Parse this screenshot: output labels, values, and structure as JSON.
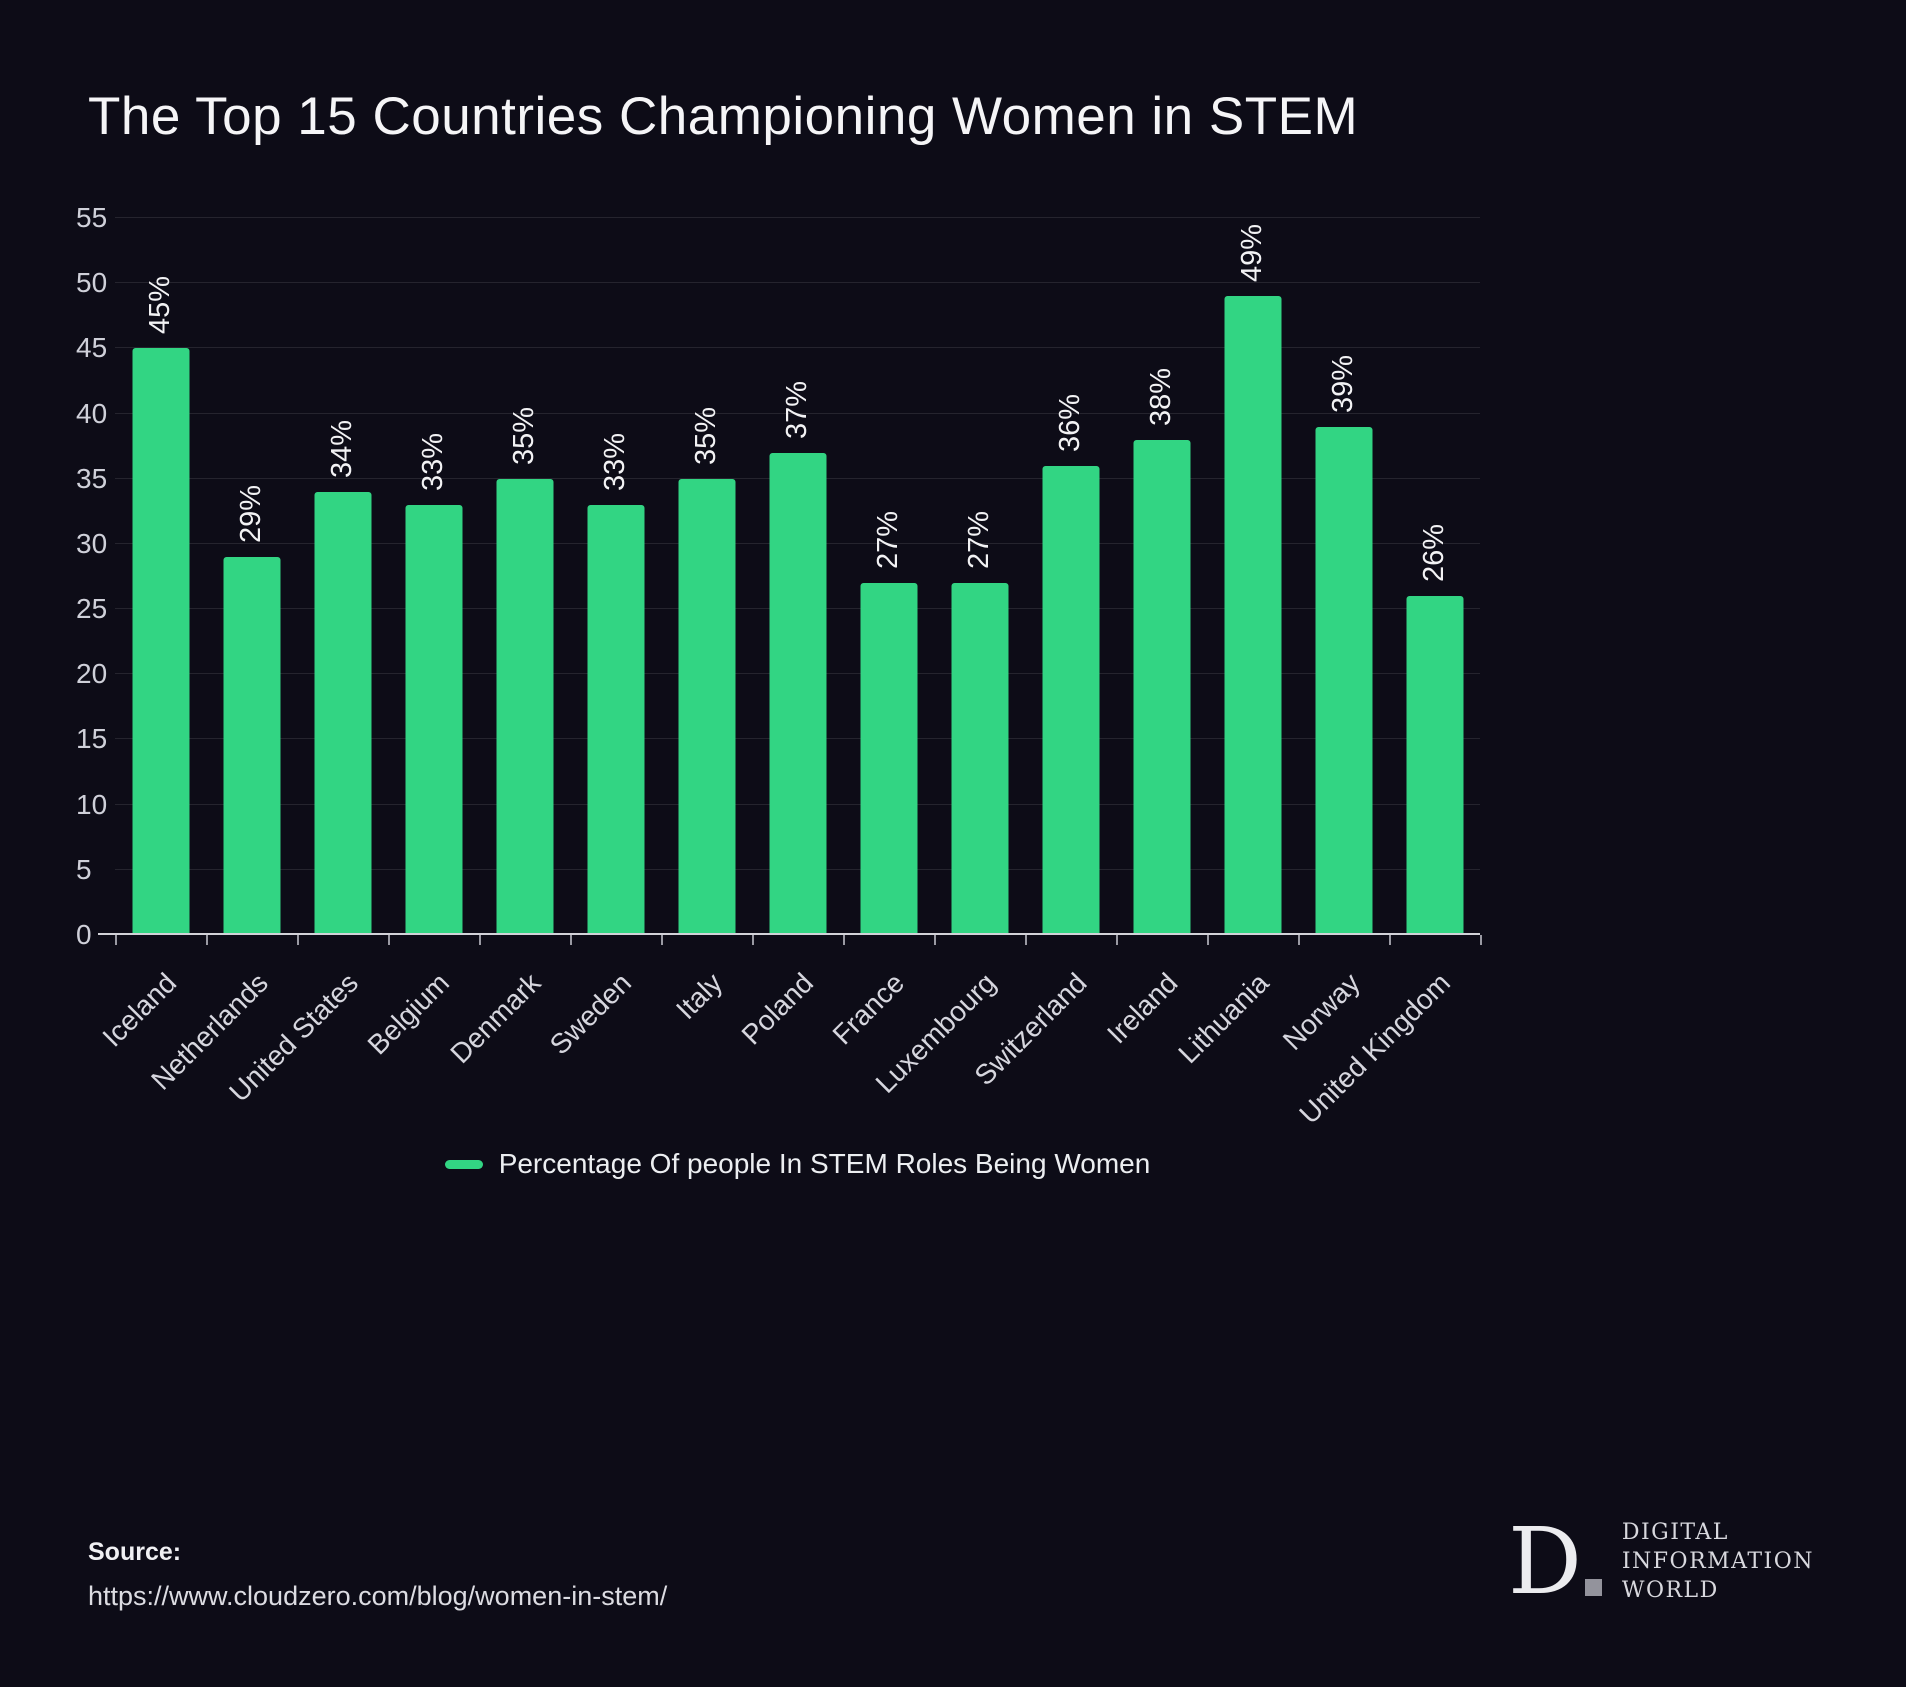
{
  "title": "The Top 15 Countries Championing Women in STEM",
  "chart_data": {
    "type": "bar",
    "title": "The Top 15 Countries Championing Women in STEM",
    "categories": [
      "Iceland",
      "Netherlands",
      "United States",
      "Belgium",
      "Denmark",
      "Sweden",
      "Italy",
      "Poland",
      "France",
      "Luxembourg",
      "Switzerland",
      "Ireland",
      "Lithuania",
      "Norway",
      "United Kingdom"
    ],
    "values": [
      45,
      29,
      34,
      33,
      35,
      33,
      35,
      37,
      27,
      27,
      36,
      38,
      49,
      39,
      26
    ],
    "value_label_suffix": "%",
    "xlabel": "",
    "ylabel": "",
    "ylim": [
      0,
      55
    ],
    "ytick_step": 5,
    "grid": true,
    "bar_color": "#32d583",
    "legend_position": "bottom",
    "legend_label": "Percentage Of people In STEM Roles Being Women"
  },
  "legend": {
    "label": "Percentage Of people In STEM Roles Being Women"
  },
  "source": {
    "heading": "Source:",
    "url": "https://www.cloudzero.com/blog/women-in-stem/"
  },
  "logo": {
    "letter": "D",
    "lines": [
      "DIGITAL",
      "INFORMATION",
      "WORLD"
    ]
  },
  "colors": {
    "background": "#0d0c17",
    "bar": "#32d583",
    "text": "#f2f2f5",
    "muted": "#cfd0d9"
  }
}
